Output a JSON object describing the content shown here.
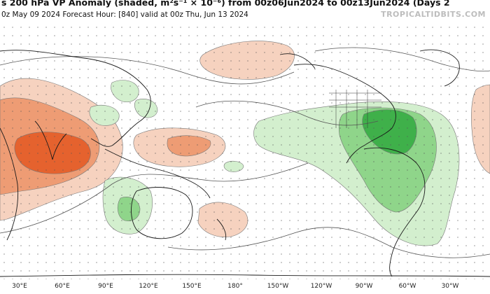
{
  "header": {
    "title": "s 200 hPa VP Anomaly (shaded, m²s⁻¹ × 10⁻⁶) from 00z06Jun2024 to 00z13Jun2024 (Days 2",
    "subtitle": "0z May 09 2024   Forecast Hour: [840]   valid at 00z Thu, Jun 13 2024",
    "brand": "TROPICALTIDBITS.COM"
  },
  "map": {
    "colors": {
      "ocean": "#ffffff",
      "positive_light": "#f6d2bf",
      "positive_mid": "#ee9c74",
      "positive_strong": "#e5622e",
      "negative_light": "#d3efce",
      "negative_mid": "#8fd58a",
      "negative_strong": "#3fb04a",
      "coast": "#1a1a1a"
    },
    "longitude_labels": [
      "30°E",
      "60°E",
      "90°E",
      "120°E",
      "150°E",
      "180°",
      "150°W",
      "120°W",
      "90°W",
      "60°W",
      "30°W"
    ]
  }
}
